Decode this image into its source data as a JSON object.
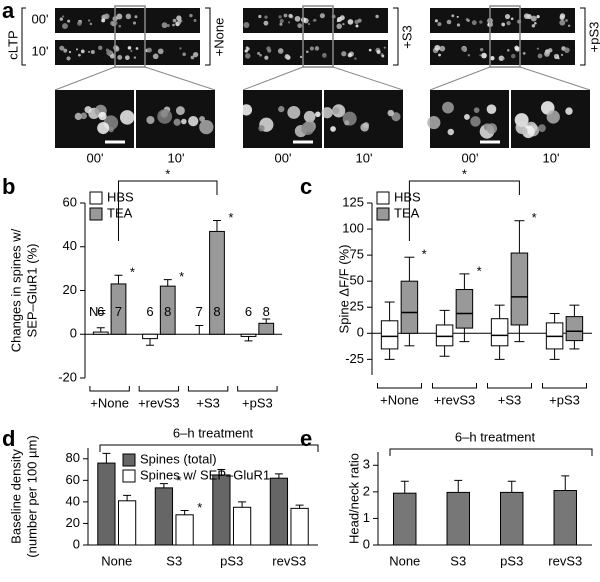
{
  "panel_a": {
    "panel": "a",
    "condition": "cLTP",
    "times": [
      "00'",
      "10'"
    ],
    "groups": [
      "+None",
      "+S3",
      "+pS3"
    ]
  },
  "chart_data": [
    {
      "panel": "b",
      "type": "bar",
      "ylabel": [
        "Changes in spines w/",
        "SEP–GluR1 (%)"
      ],
      "categories": [
        "+None",
        "+revS3",
        "+S3",
        "+pS3"
      ],
      "ylim": [
        -20,
        60
      ],
      "yticks": [
        -20,
        0,
        20,
        40,
        60
      ],
      "legend": "upper left",
      "n_label": "N=",
      "annotation": "*",
      "series": [
        {
          "name": "HBS",
          "color": "#ffffff",
          "values": [
            1,
            -2,
            0,
            -1
          ],
          "errors": [
            2,
            3,
            4,
            2
          ],
          "n": [
            6,
            6,
            7,
            6
          ],
          "significant": [
            false,
            false,
            false,
            false
          ]
        },
        {
          "name": "TEA",
          "color": "#999999",
          "values": [
            23,
            22,
            47,
            5
          ],
          "errors": [
            4,
            3,
            5,
            2
          ],
          "n": [
            7,
            8,
            8,
            8
          ],
          "significant": [
            true,
            true,
            true,
            false
          ]
        }
      ]
    },
    {
      "panel": "c",
      "type": "box",
      "ylabel": [
        "Spine ΔF/F (%)"
      ],
      "categories": [
        "+None",
        "+revS3",
        "+S3",
        "+pS3"
      ],
      "ylim": [
        -40,
        125
      ],
      "yticks": [
        -25,
        0,
        25,
        50,
        75,
        100,
        125
      ],
      "legend": "upper left",
      "annotation": "*",
      "series": [
        {
          "name": "HBS",
          "color": "#ffffff",
          "values": [
            [
              -25,
              -15,
              -3,
              12,
              30
            ],
            [
              -22,
              -12,
              -3,
              8,
              22
            ],
            [
              -25,
              -12,
              -2,
              14,
              27
            ],
            [
              -25,
              -15,
              -3,
              10,
              19
            ]
          ],
          "significant": [
            false,
            false,
            false,
            false
          ]
        },
        {
          "name": "TEA",
          "color": "#999999",
          "values": [
            [
              -12,
              0,
              20,
              50,
              73
            ],
            [
              -8,
              5,
              19,
              42,
              57
            ],
            [
              -8,
              8,
              35,
              77,
              108
            ],
            [
              -15,
              -7,
              2,
              16,
              27
            ]
          ],
          "significant": [
            true,
            true,
            true,
            false
          ]
        }
      ]
    },
    {
      "panel": "d",
      "type": "bar",
      "title": "6–h treatment",
      "ylabel": [
        "Baseline density",
        "(number per 100 µm)"
      ],
      "categories": [
        "None",
        "S3",
        "pS3",
        "revS3"
      ],
      "ylim": [
        0,
        90
      ],
      "yticks": [
        0,
        20,
        40,
        60,
        80
      ],
      "legend": "upper left",
      "annotation": "*",
      "series": [
        {
          "name": "Spines (total)",
          "color": "#666666",
          "values": [
            76,
            53,
            65,
            62
          ],
          "errors": [
            9,
            4,
            5,
            4
          ],
          "significant": [
            false,
            true,
            false,
            false
          ]
        },
        {
          "name": "Spines w/ SEP–GluR1",
          "color": "#ffffff",
          "values": [
            41,
            28,
            35,
            34
          ],
          "errors": [
            5,
            4,
            5,
            3
          ],
          "significant": [
            false,
            true,
            false,
            false
          ]
        }
      ]
    },
    {
      "panel": "e",
      "type": "bar",
      "title": "6–h treatment",
      "ylabel": [
        "Head/neck ratio"
      ],
      "categories": [
        "None",
        "S3",
        "pS3",
        "revS3"
      ],
      "ylim": [
        0,
        3.5
      ],
      "yticks": [
        0,
        1,
        2,
        3
      ],
      "series": [
        {
          "color": "#777777",
          "values": [
            1.95,
            1.98,
            1.98,
            2.05
          ],
          "errors": [
            0.45,
            0.45,
            0.42,
            0.55
          ]
        }
      ]
    }
  ]
}
